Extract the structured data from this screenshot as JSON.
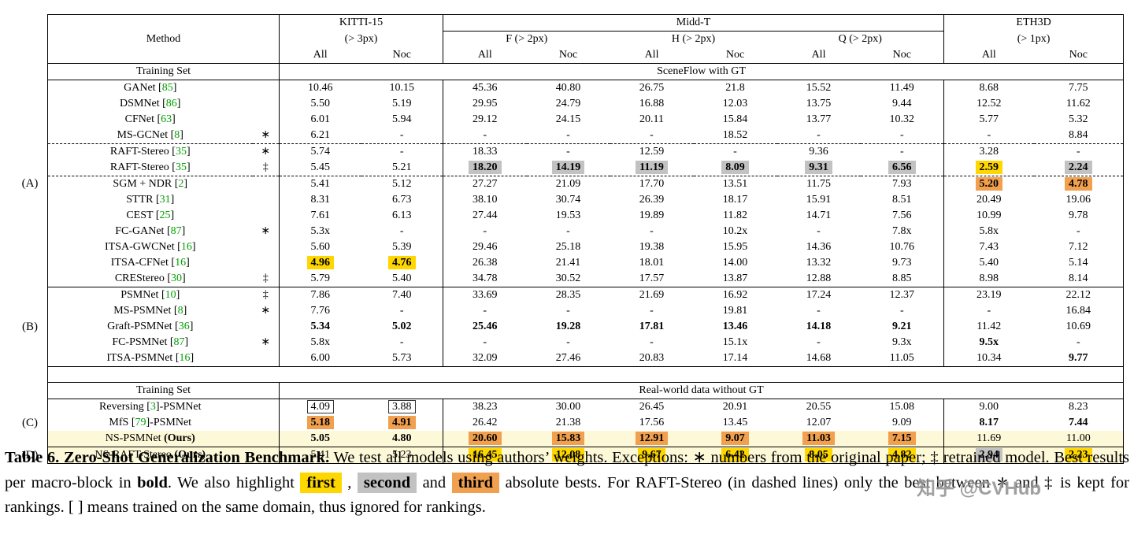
{
  "colors": {
    "first": "#FFD700",
    "second": "#C2C2C2",
    "third": "#F0A04E",
    "row_highlight": "#FDF8D8",
    "cite_green": "#00A000"
  },
  "watermark": "知乎 @CVHub",
  "table": {
    "ours_label": "(Ours)",
    "header": {
      "method_label": "Method",
      "row1": [
        {
          "label": "KITTI-15",
          "span": 2
        },
        {
          "label": "Midd-T",
          "span": 6
        },
        {
          "label": "ETH3D",
          "span": 2
        }
      ],
      "row2": [
        {
          "label": "(> 3px)",
          "span": 2
        },
        {
          "label": "F (> 2px)",
          "span": 2
        },
        {
          "label": "H (> 2px)",
          "span": 2
        },
        {
          "label": "Q (> 2px)",
          "span": 2
        },
        {
          "label": "(> 1px)",
          "span": 2
        }
      ],
      "row3": [
        "All",
        "Noc",
        "All",
        "Noc",
        "All",
        "Noc",
        "All",
        "Noc",
        "All",
        "Noc"
      ]
    },
    "sections": [
      {
        "band": {
          "left": "Training Set",
          "right": "SceneFlow with GT"
        },
        "groups": [
          {
            "label": "(A)",
            "rows": [
              {
                "m": {
                  "name": "GANet",
                  "cite": "85"
                },
                "mk": "",
                "cells": [
                  "10.46",
                  "10.15",
                  "45.36",
                  "40.80",
                  "26.75",
                  "21.8",
                  "15.52",
                  "11.49",
                  "8.68",
                  "7.75"
                ]
              },
              {
                "m": {
                  "name": "DSMNet",
                  "cite": "86"
                },
                "mk": "",
                "cells": [
                  "5.50",
                  "5.19",
                  "29.95",
                  "24.79",
                  "16.88",
                  "12.03",
                  "13.75",
                  "9.44",
                  "12.52",
                  "11.62"
                ]
              },
              {
                "m": {
                  "name": "CFNet",
                  "cite": "63"
                },
                "mk": "",
                "cells": [
                  "6.01",
                  "5.94",
                  "29.12",
                  "24.15",
                  "20.11",
                  "15.84",
                  "13.77",
                  "10.32",
                  "5.77",
                  "5.32"
                ]
              },
              {
                "m": {
                  "name": "MS-GCNet",
                  "cite": "8"
                },
                "mk": "∗",
                "cells": [
                  "6.21",
                  "-",
                  "-",
                  "-",
                  "-",
                  "18.52",
                  "-",
                  "-",
                  "-",
                  "8.84"
                ]
              },
              {
                "m": {
                  "name": "RAFT-Stereo",
                  "cite": "35"
                },
                "mk": "∗",
                "dt": 1,
                "cells": [
                  "5.74",
                  "-",
                  "18.33",
                  "-",
                  "12.59",
                  "-",
                  "9.36",
                  "-",
                  "3.28",
                  "-"
                ]
              },
              {
                "m": {
                  "name": "RAFT-Stereo",
                  "cite": "35"
                },
                "mk": "‡",
                "db": 1,
                "cells": [
                  "5.45",
                  "5.21",
                  {
                    "v": "18.20",
                    "h": 2
                  },
                  {
                    "v": "14.19",
                    "h": 2
                  },
                  {
                    "v": "11.19",
                    "h": 2
                  },
                  {
                    "v": "8.09",
                    "h": 2
                  },
                  {
                    "v": "9.31",
                    "h": 2
                  },
                  {
                    "v": "6.56",
                    "h": 2
                  },
                  {
                    "v": "2.59",
                    "h": 1
                  },
                  {
                    "v": "2.24",
                    "h": 2
                  }
                ]
              },
              {
                "m": {
                  "name": "SGM + NDR",
                  "cite": "2"
                },
                "mk": "",
                "cells": [
                  "5.41",
                  "5.12",
                  "27.27",
                  "21.09",
                  "17.70",
                  "13.51",
                  "11.75",
                  "7.93",
                  {
                    "v": "5.20",
                    "h": 3
                  },
                  {
                    "v": "4.78",
                    "h": 3
                  }
                ]
              },
              {
                "m": {
                  "name": "STTR",
                  "cite": "31"
                },
                "mk": "",
                "cells": [
                  "8.31",
                  "6.73",
                  "38.10",
                  "30.74",
                  "26.39",
                  "18.17",
                  "15.91",
                  "8.51",
                  "20.49",
                  "19.06"
                ]
              },
              {
                "m": {
                  "name": "CEST",
                  "cite": "25"
                },
                "mk": "",
                "cells": [
                  "7.61",
                  "6.13",
                  "27.44",
                  "19.53",
                  "19.89",
                  "11.82",
                  "14.71",
                  "7.56",
                  "10.99",
                  "9.78"
                ]
              },
              {
                "m": {
                  "name": "FC-GANet",
                  "cite": "87"
                },
                "mk": "∗",
                "cells": [
                  "5.3x",
                  "-",
                  "-",
                  "-",
                  "-",
                  "10.2x",
                  "-",
                  "7.8x",
                  "5.8x",
                  "-"
                ]
              },
              {
                "m": {
                  "name": "ITSA-GWCNet",
                  "cite": "16"
                },
                "mk": "",
                "cells": [
                  "5.60",
                  "5.39",
                  "29.46",
                  "25.18",
                  "19.38",
                  "15.95",
                  "14.36",
                  "10.76",
                  "7.43",
                  "7.12"
                ]
              },
              {
                "m": {
                  "name": "ITSA-CFNet",
                  "cite": "16"
                },
                "mk": "",
                "cells": [
                  {
                    "v": "4.96",
                    "h": 1
                  },
                  {
                    "v": "4.76",
                    "h": 1
                  },
                  "26.38",
                  "21.41",
                  "18.01",
                  "14.00",
                  "13.32",
                  "9.73",
                  "5.40",
                  "5.14"
                ]
              },
              {
                "m": {
                  "name": "CREStereo",
                  "cite": "30"
                },
                "mk": "‡",
                "cells": [
                  "5.79",
                  "5.40",
                  "34.78",
                  "30.52",
                  "17.57",
                  "13.87",
                  "12.88",
                  "8.85",
                  "8.98",
                  "8.14"
                ]
              }
            ]
          },
          {
            "label": "(B)",
            "rows": [
              {
                "m": {
                  "name": "PSMNet",
                  "cite": "10"
                },
                "mk": "‡",
                "cells": [
                  "7.86",
                  "7.40",
                  "33.69",
                  "28.35",
                  "21.69",
                  "16.92",
                  "17.24",
                  "12.37",
                  "23.19",
                  "22.12"
                ]
              },
              {
                "m": {
                  "name": "MS-PSMNet",
                  "cite": "8"
                },
                "mk": "∗",
                "cells": [
                  "7.76",
                  "-",
                  "-",
                  "-",
                  "-",
                  "19.81",
                  "-",
                  "-",
                  "-",
                  "16.84"
                ]
              },
              {
                "m": {
                  "name": "Graft-PSMNet",
                  "cite": "36"
                },
                "mk": "",
                "cells": [
                  {
                    "v": "5.34",
                    "b": 1
                  },
                  {
                    "v": "5.02",
                    "b": 1
                  },
                  {
                    "v": "25.46",
                    "b": 1
                  },
                  {
                    "v": "19.28",
                    "b": 1
                  },
                  {
                    "v": "17.81",
                    "b": 1
                  },
                  {
                    "v": "13.46",
                    "b": 1
                  },
                  {
                    "v": "14.18",
                    "b": 1
                  },
                  {
                    "v": "9.21",
                    "b": 1
                  },
                  "11.42",
                  "10.69"
                ]
              },
              {
                "m": {
                  "name": "FC-PSMNet",
                  "cite": "87"
                },
                "mk": "∗",
                "cells": [
                  "5.8x",
                  "-",
                  "-",
                  "-",
                  "-",
                  "15.1x",
                  "-",
                  "9.3x",
                  {
                    "v": "9.5x",
                    "b": 1
                  },
                  "-"
                ]
              },
              {
                "m": {
                  "name": "ITSA-PSMNet",
                  "cite": "16"
                },
                "mk": "",
                "cells": [
                  "6.00",
                  "5.73",
                  "32.09",
                  "27.46",
                  "20.83",
                  "17.14",
                  "14.68",
                  "11.05",
                  "10.34",
                  {
                    "v": "9.77",
                    "b": 1
                  }
                ]
              }
            ]
          }
        ]
      },
      {
        "band": {
          "left": "Training Set",
          "right": "Real-world data without GT"
        },
        "groups": [
          {
            "label": "(C)",
            "rows": [
              {
                "m": {
                  "name": "Reversing",
                  "cite": "3",
                  "suffix": "-PSMNet"
                },
                "mk": "",
                "cells": [
                  {
                    "v": "4.09",
                    "x": 1
                  },
                  {
                    "v": "3.88",
                    "x": 1
                  },
                  "38.23",
                  "30.00",
                  "26.45",
                  "20.91",
                  "20.55",
                  "15.08",
                  "9.00",
                  "8.23"
                ]
              },
              {
                "m": {
                  "name": "MfS",
                  "cite": "79",
                  "suffix": "-PSMNet"
                },
                "mk": "",
                "cells": [
                  {
                    "v": "5.18",
                    "h": 3
                  },
                  {
                    "v": "4.91",
                    "h": 3
                  },
                  "26.42",
                  "21.38",
                  "17.56",
                  "13.45",
                  "12.07",
                  "9.09",
                  {
                    "v": "8.17",
                    "b": 1
                  },
                  {
                    "v": "7.44",
                    "b": 1
                  }
                ]
              },
              {
                "m": {
                  "name": "NS-PSMNet",
                  "ours": true
                },
                "mk": "",
                "bg": 1,
                "cells": [
                  {
                    "v": "5.05",
                    "b": 1
                  },
                  {
                    "v": "4.80",
                    "b": 1
                  },
                  {
                    "v": "20.60",
                    "h": 3
                  },
                  {
                    "v": "15.83",
                    "h": 3
                  },
                  {
                    "v": "12.91",
                    "h": 3
                  },
                  {
                    "v": "9.07",
                    "h": 3
                  },
                  {
                    "v": "11.03",
                    "h": 3
                  },
                  {
                    "v": "7.15",
                    "h": 3
                  },
                  "11.69",
                  "11.00"
                ]
              }
            ]
          },
          {
            "label": "(D)",
            "rows": [
              {
                "m": {
                  "name": "NS-RAFT-Stereo",
                  "ours": true
                },
                "mk": "",
                "bg": 1,
                "cells": [
                  "5.41",
                  "5.23",
                  {
                    "v": "16.45",
                    "h": 1
                  },
                  {
                    "v": "12.08",
                    "h": 1
                  },
                  {
                    "v": "9.67",
                    "h": 1
                  },
                  {
                    "v": "6.42",
                    "h": 1
                  },
                  {
                    "v": "8.05",
                    "h": 1
                  },
                  {
                    "v": "4.82",
                    "h": 1
                  },
                  {
                    "v": "2.94",
                    "h": 2
                  },
                  {
                    "v": "2.23",
                    "h": 1
                  }
                ]
              }
            ]
          }
        ]
      }
    ]
  },
  "caption": {
    "segments": [
      {
        "t": "Table 6. ",
        "s": "b"
      },
      {
        "t": "Zero-Shot Generalization Benchmark.",
        "s": "b"
      },
      {
        "t": " We test all models using authors’ weights. Exceptions: ∗ numbers from the original paper; ‡ retrained model. Best results per macro-block in ",
        "s": ""
      },
      {
        "t": "bold",
        "s": "b"
      },
      {
        "t": ". We also highlight ",
        "s": ""
      },
      {
        "t": "first",
        "s": "h1"
      },
      {
        "t": " , ",
        "s": ""
      },
      {
        "t": "second",
        "s": "h2"
      },
      {
        "t": " and ",
        "s": ""
      },
      {
        "t": "third",
        "s": "h3"
      },
      {
        "t": " absolute bests. For RAFT-Stereo (in dashed lines) only the best between ∗ and ‡ is kept for rankings. [ ] means trained on the same domain, thus ignored for rankings.",
        "s": ""
      }
    ]
  }
}
